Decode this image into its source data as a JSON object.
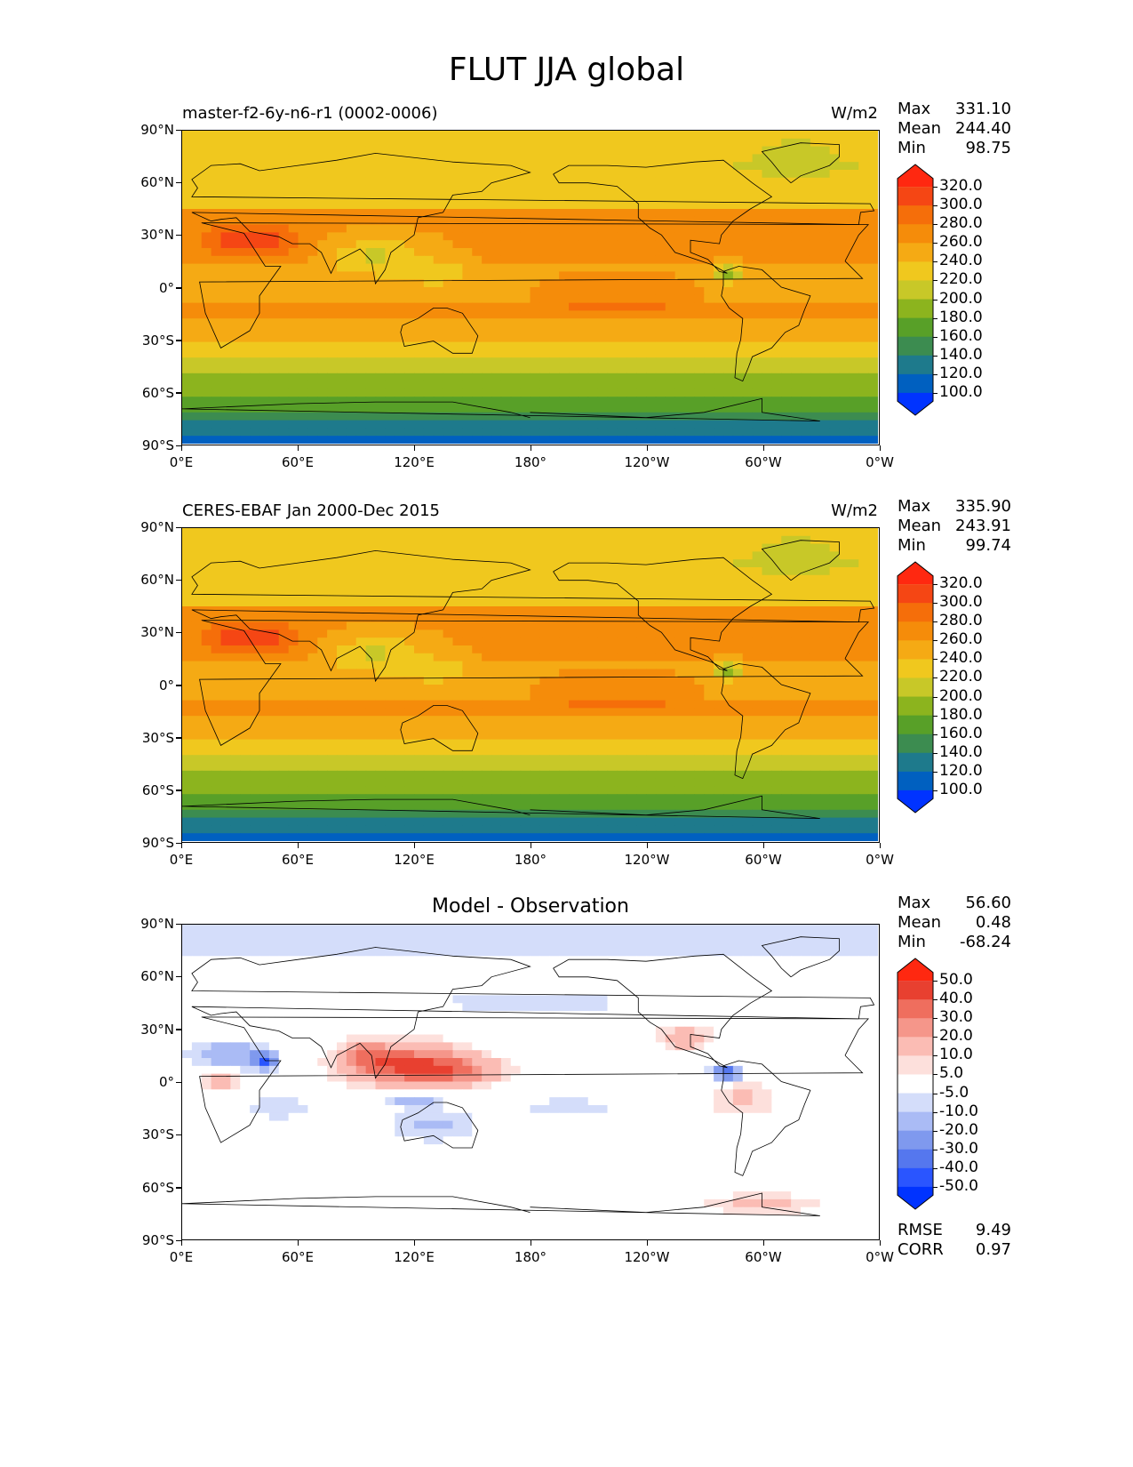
{
  "figure": {
    "title": "FLUT JJA global"
  },
  "lat_ticks": [
    "90°N",
    "60°N",
    "30°N",
    "0°",
    "30°S",
    "60°S",
    "90°S"
  ],
  "lon_ticks": [
    "0°E",
    "60°E",
    "120°E",
    "180°",
    "120°W",
    "60°W",
    "0°W"
  ],
  "panels": [
    {
      "id": "model",
      "title_left": "master-f2-6y-n6-r1 (0002-0006)",
      "units": "W/m2",
      "stats": {
        "max_label": "Max",
        "max": "331.10",
        "mean_label": "Mean",
        "mean": "244.40",
        "min_label": "Min",
        "min": "98.75"
      },
      "colorbar_levels": [
        "320.0",
        "300.0",
        "280.0",
        "260.0",
        "240.0",
        "220.0",
        "200.0",
        "180.0",
        "160.0",
        "140.0",
        "120.0",
        "100.0"
      ]
    },
    {
      "id": "obs",
      "title_left": "CERES-EBAF Jan 2000-Dec 2015",
      "units": "W/m2",
      "stats": {
        "max_label": "Max",
        "max": "335.90",
        "mean_label": "Mean",
        "mean": "243.91",
        "min_label": "Min",
        "min": "99.74"
      },
      "colorbar_levels": [
        "320.0",
        "300.0",
        "280.0",
        "260.0",
        "240.0",
        "220.0",
        "200.0",
        "180.0",
        "160.0",
        "140.0",
        "120.0",
        "100.0"
      ]
    },
    {
      "id": "diff",
      "title_center": "Model - Observation",
      "stats": {
        "max_label": "Max",
        "max": "56.60",
        "mean_label": "Mean",
        "mean": "0.48",
        "min_label": "Min",
        "min": "-68.24"
      },
      "colorbar_levels": [
        "50.0",
        "40.0",
        "30.0",
        "20.0",
        "10.0",
        "5.0",
        "-5.0",
        "-10.0",
        "-20.0",
        "-30.0",
        "-40.0",
        "-50.0"
      ],
      "metrics": {
        "rmse_label": "RMSE",
        "rmse": "9.49",
        "corr_label": "CORR",
        "corr": "0.97"
      }
    }
  ],
  "colors": {
    "abs_scale": [
      "#0033ff",
      "#0060c0",
      "#1e7a8c",
      "#3c8c50",
      "#58a028",
      "#8cb41e",
      "#c8c828",
      "#f0c81e",
      "#f5aa14",
      "#f58c0a",
      "#f56e0a",
      "#f54614",
      "#ff2810"
    ],
    "diff_scale": [
      "#0033ff",
      "#2a55ff",
      "#5577ee",
      "#7f99ee",
      "#aabbf5",
      "#d4ddfa",
      "#ffffff",
      "#fde0dc",
      "#fbbcb4",
      "#f5968a",
      "#ef6e5e",
      "#e84030",
      "#ff2810"
    ]
  },
  "chart_data": [
    {
      "type": "heatmap",
      "title": "master-f2-6y-n6-r1 (0002-0006)",
      "xlabel": "",
      "ylabel": "",
      "xlim": [
        0,
        360
      ],
      "ylim": [
        -90,
        90
      ],
      "units": "W/m2",
      "summary": {
        "max": 331.1,
        "mean": 244.4,
        "min": 98.75
      },
      "zonal_mean_by_lat": {
        "lat": [
          80,
          60,
          40,
          20,
          0,
          -20,
          -40,
          -60,
          -80
        ],
        "value": [
          215,
          220,
          260,
          265,
          255,
          265,
          235,
          195,
          120
        ]
      }
    },
    {
      "type": "heatmap",
      "title": "CERES-EBAF Jan 2000-Dec 2015",
      "xlabel": "",
      "ylabel": "",
      "xlim": [
        0,
        360
      ],
      "ylim": [
        -90,
        90
      ],
      "units": "W/m2",
      "summary": {
        "max": 335.9,
        "mean": 243.91,
        "min": 99.74
      },
      "zonal_mean_by_lat": {
        "lat": [
          80,
          60,
          40,
          20,
          0,
          -20,
          -40,
          -60,
          -80
        ],
        "value": [
          215,
          220,
          255,
          260,
          250,
          265,
          235,
          195,
          120
        ]
      }
    },
    {
      "type": "heatmap",
      "title": "Model - Observation",
      "xlabel": "",
      "ylabel": "",
      "xlim": [
        0,
        360
      ],
      "ylim": [
        -90,
        90
      ],
      "summary": {
        "max": 56.6,
        "mean": 0.48,
        "min": -68.24,
        "rmse": 9.49,
        "corr": 0.97
      }
    }
  ]
}
